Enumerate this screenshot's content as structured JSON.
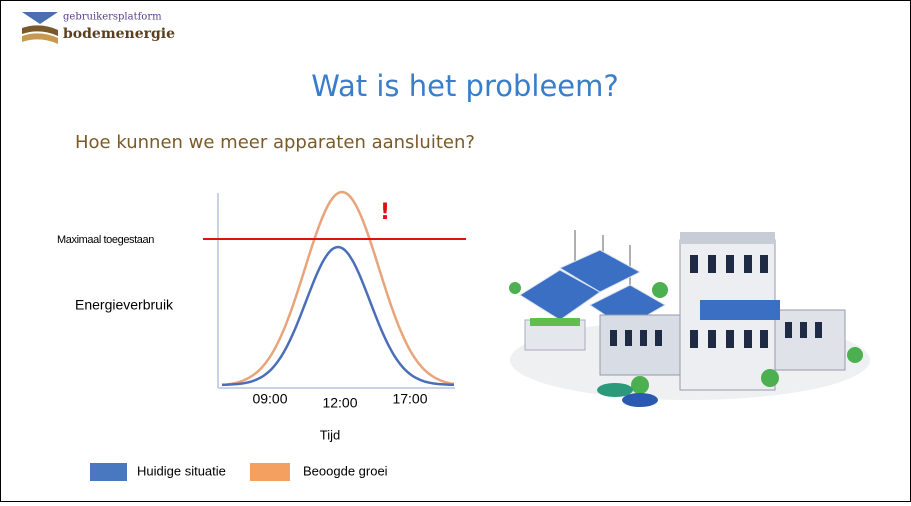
{
  "logo": {
    "line1": "gebruikersplatform",
    "line2": "bodemenergie"
  },
  "title": "Wat is het probleem?",
  "subtitle": "Hoe kunnen we meer apparaten aansluiten?",
  "diagram": {
    "limit_label": "Maximaal toegestaan",
    "warning": "!",
    "y_label": "Energieverbruik",
    "x_ticks": [
      "09:00",
      "12:00",
      "17:00"
    ],
    "x_label": "Tijd",
    "legend": [
      "Huidige situatie",
      "Beoogde groei"
    ]
  }
}
